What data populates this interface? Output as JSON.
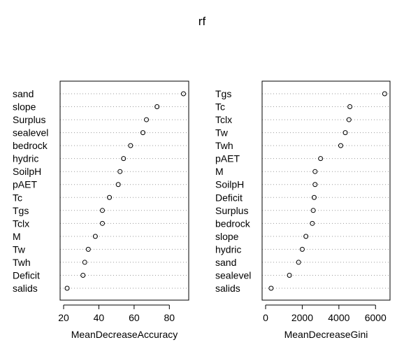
{
  "title": "rf",
  "chart_data": [
    {
      "type": "scatter",
      "style": "dotchart",
      "xlabel": "MeanDecreaseAccuracy",
      "xlim": [
        20,
        89
      ],
      "xticks": [
        20,
        40,
        60,
        80
      ],
      "categories": [
        "sand",
        "slope",
        "Surplus",
        "sealevel",
        "bedrock",
        "hydric",
        "SoilpH",
        "pAET",
        "Tc",
        "Tgs",
        "Tclx",
        "M",
        "Tw",
        "Twh",
        "Deficit",
        "salids"
      ],
      "values": [
        88,
        73,
        67,
        65,
        58,
        54,
        52,
        51,
        46,
        42,
        42,
        38,
        34,
        32,
        31,
        22
      ],
      "grid": "dotted horizontal"
    },
    {
      "type": "scatter",
      "style": "dotchart",
      "xlabel": "MeanDecreaseGini",
      "xlim": [
        0,
        6600
      ],
      "xticks": [
        0,
        2000,
        4000,
        6000
      ],
      "categories": [
        "Tgs",
        "Tc",
        "Tclx",
        "Tw",
        "Twh",
        "pAET",
        "M",
        "SoilpH",
        "Deficit",
        "Surplus",
        "bedrock",
        "slope",
        "hydric",
        "sand",
        "sealevel",
        "salids"
      ],
      "values": [
        6500,
        4600,
        4550,
        4350,
        4100,
        3000,
        2700,
        2700,
        2650,
        2600,
        2550,
        2200,
        2000,
        1800,
        1300,
        300
      ],
      "grid": "dotted horizontal"
    }
  ]
}
